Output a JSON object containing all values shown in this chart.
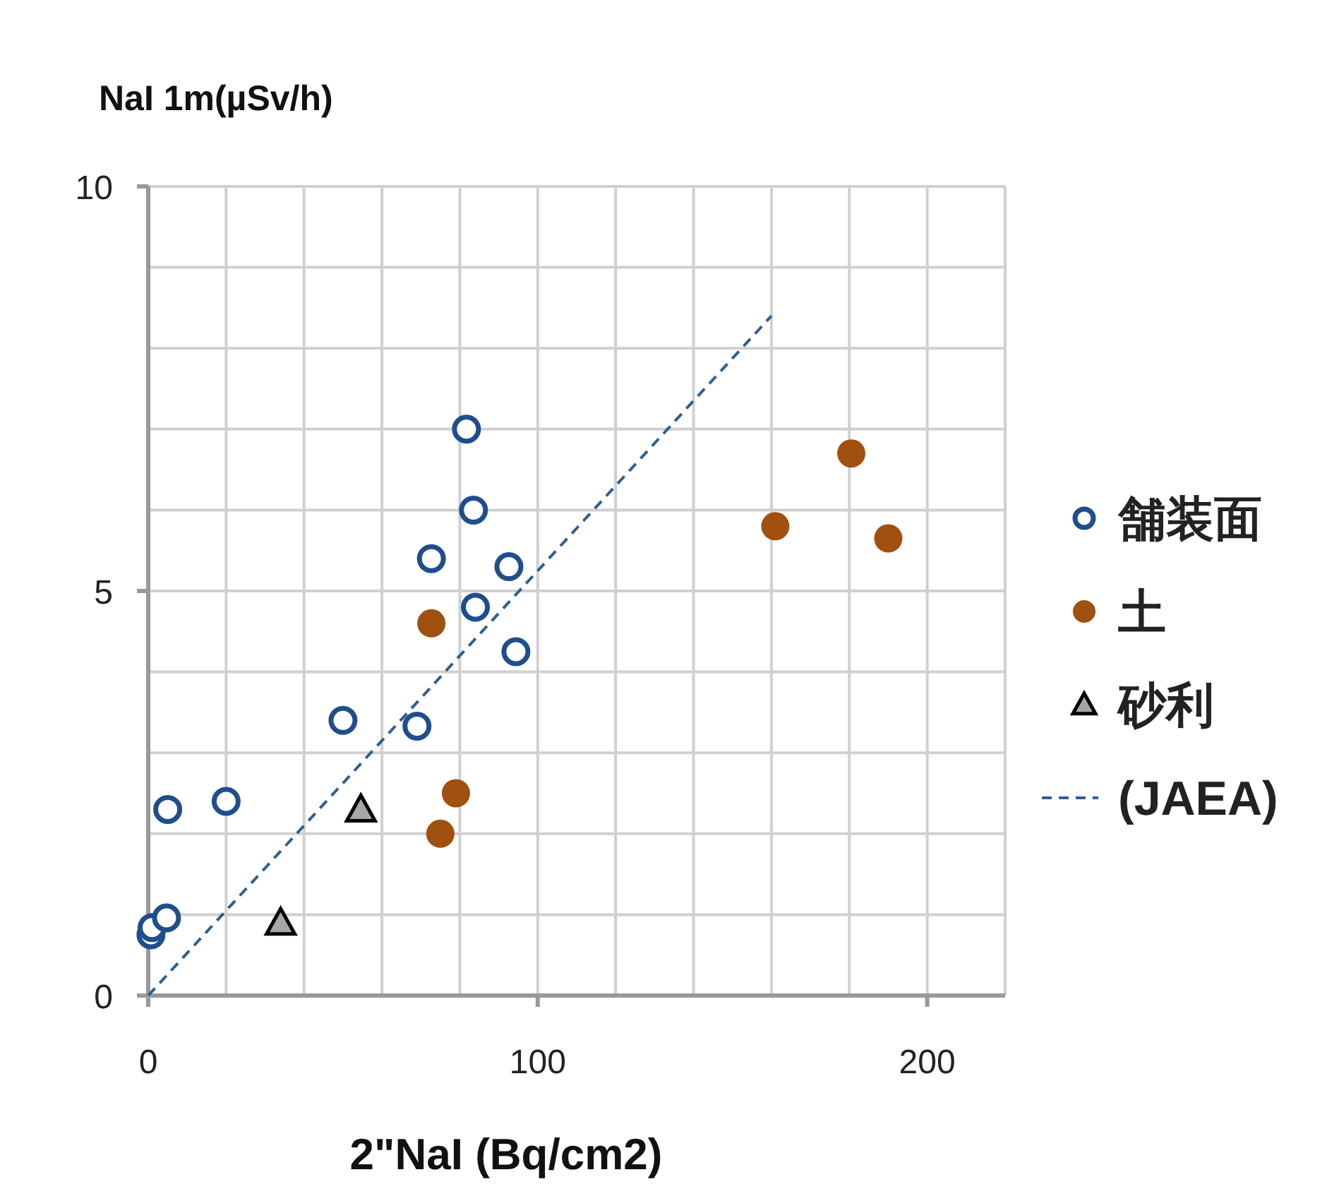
{
  "chart_data": {
    "type": "scatter",
    "ylabel": "NaI 1m(µSv/h)",
    "xlabel": "2\"NaI (Bq/cm2)",
    "xlim": [
      0,
      220
    ],
    "ylim": [
      0,
      10
    ],
    "xticks": [
      0,
      {
        "value": 20,
        "label": null
      },
      {
        "value": 40,
        "label": null
      },
      {
        "value": 60,
        "label": null
      },
      {
        "value": 80,
        "label": null
      },
      100,
      {
        "value": 120,
        "label": null
      },
      {
        "value": 140,
        "label": null
      },
      {
        "value": 160,
        "label": null
      },
      {
        "value": 180,
        "label": null
      },
      200,
      {
        "value": 220,
        "label": null
      }
    ],
    "yticks": [
      0,
      {
        "value": 1,
        "label": null
      },
      {
        "value": 2,
        "label": null
      },
      {
        "value": 3,
        "label": null
      },
      {
        "value": 4,
        "label": null
      },
      5,
      {
        "value": 6,
        "label": null
      },
      {
        "value": 7,
        "label": null
      },
      {
        "value": 8,
        "label": null
      },
      {
        "value": 9,
        "label": null
      },
      10
    ],
    "grid": true,
    "legend": "right",
    "series": [
      {
        "name": "舗装面",
        "color": "#1f4e8c",
        "marker": "circle",
        "x": [
          0.7,
          1,
          4.7,
          5,
          20,
          50,
          69,
          72.7,
          81.7,
          83.5,
          84,
          92.6,
          94.4
        ],
        "values": [
          0.75,
          0.84,
          0.96,
          2.3,
          2.4,
          3.4,
          3.33,
          5.4,
          7.0,
          6.0,
          4.8,
          5.3,
          4.25
        ]
      },
      {
        "name": "土",
        "color": "#a0500f",
        "marker": "circle",
        "x": [
          72.7,
          79,
          75,
          161,
          180.5,
          190
        ],
        "values": [
          4.6,
          2.5,
          2.0,
          5.8,
          6.7,
          5.65
        ]
      },
      {
        "name": "砂利",
        "color": "#a6a6a6",
        "marker": "triangle",
        "x": [
          54.6,
          34
        ],
        "values": [
          2.3,
          0.9
        ]
      },
      {
        "name": "(JAEA)",
        "type": "line",
        "color": "#2e5f94",
        "line_style": "dashed",
        "marker": "none",
        "x": [
          0,
          160
        ],
        "values": [
          0,
          8.4
        ]
      }
    ]
  }
}
